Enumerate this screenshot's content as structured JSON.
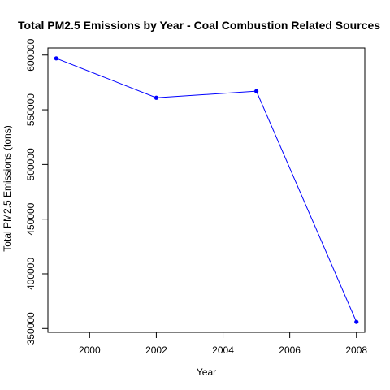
{
  "chart_data": {
    "type": "line",
    "title": "Total PM2.5 Emissions by Year - Coal Combustion Related Sources",
    "xlabel": "Year",
    "ylabel": "Total PM2.5 Emissions (tons)",
    "x": [
      1999,
      2002,
      2005,
      2008
    ],
    "series": [
      {
        "values": [
          597000,
          561000,
          567000,
          356000
        ]
      }
    ],
    "xlim": [
      1998.75,
      2008.25
    ],
    "ylim": [
      346500,
      606500
    ],
    "xticks": [
      2000,
      2002,
      2004,
      2006,
      2008
    ],
    "xtick_labels": [
      "2000",
      "2002",
      "2004",
      "2006",
      "2008"
    ],
    "yticks": [
      350000,
      400000,
      450000,
      500000,
      550000,
      600000
    ],
    "ytick_labels": [
      "350000",
      "400000",
      "450000",
      "500000",
      "550000",
      "600000"
    ],
    "grid": false,
    "line_color": "#0000ff",
    "marker_color": "#0000ff",
    "axis_color": "#000000"
  }
}
